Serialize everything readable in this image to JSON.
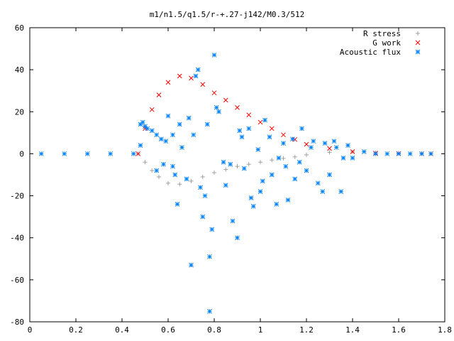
{
  "chart_data": {
    "type": "scatter",
    "title": "m1/n1.5/q1.5/r-+.27-j142/M0.3/512",
    "xlabel": "",
    "ylabel": "",
    "xlim": [
      0,
      1.8
    ],
    "ylim": [
      -80,
      60
    ],
    "x_ticks": [
      0,
      0.2,
      0.4,
      0.6,
      0.8,
      1,
      1.2,
      1.4,
      1.6,
      1.8
    ],
    "x_tick_labels": [
      "0",
      "0.2",
      "0.4",
      "0.6",
      "0.8",
      "1",
      "1.2",
      "1.4",
      "1.6",
      "1.8"
    ],
    "y_ticks": [
      -80,
      -60,
      -40,
      -20,
      0,
      20,
      40,
      60
    ],
    "y_tick_labels": [
      "-80",
      "-60",
      "-40",
      "-20",
      "0",
      "20",
      "40",
      "60"
    ],
    "grid": false,
    "legend_position": "top-right",
    "series": [
      {
        "name": "R stress",
        "marker": "plus",
        "color": "#a0a0a0",
        "x": [
          0.47,
          0.5,
          0.53,
          0.56,
          0.6,
          0.65,
          0.7,
          0.75,
          0.8,
          0.85,
          0.9,
          0.95,
          1.0,
          1.05,
          1.1,
          1.15,
          1.2,
          1.3,
          1.4,
          1.5,
          1.6,
          1.7,
          1.74
        ],
        "y": [
          0,
          -4,
          -8,
          -11,
          -14,
          -14.5,
          -13,
          -11,
          -9,
          -7.5,
          -6,
          -5,
          -4,
          -3,
          -2.2,
          -1.5,
          -0.5,
          0.7,
          0.9,
          0.5,
          0.3,
          0.1,
          0
        ]
      },
      {
        "name": "G work",
        "marker": "cross",
        "color": "#ff0000",
        "x": [
          0.47,
          0.5,
          0.53,
          0.56,
          0.6,
          0.65,
          0.7,
          0.75,
          0.8,
          0.85,
          0.9,
          0.95,
          1.0,
          1.05,
          1.1,
          1.15,
          1.2,
          1.3,
          1.4,
          1.5,
          1.6,
          1.7,
          1.74
        ],
        "y": [
          0,
          12,
          21,
          28,
          34,
          37,
          36,
          33,
          29,
          25.5,
          22,
          18.5,
          15,
          12,
          9,
          6.8,
          4.5,
          2.5,
          1,
          0.3,
          0.1,
          0,
          0
        ]
      },
      {
        "name": "Acoustic flux",
        "marker": "star",
        "color": "#0080ff",
        "x": [
          0.05,
          0.15,
          0.25,
          0.35,
          0.45,
          0.48,
          0.49,
          0.5,
          0.51,
          0.53,
          0.55,
          0.57,
          0.59,
          0.48,
          0.55,
          0.58,
          0.6,
          0.62,
          0.63,
          0.65,
          0.69,
          0.7,
          0.72,
          0.73,
          0.75,
          0.76,
          0.77,
          0.78,
          0.78,
          0.8,
          0.82,
          0.85,
          0.87,
          0.9,
          0.92,
          0.95,
          0.97,
          1.0,
          1.02,
          1.05,
          1.08,
          1.1,
          1.12,
          1.15,
          1.18,
          1.2,
          1.23,
          1.25,
          1.28,
          1.3,
          1.33,
          1.35,
          1.38,
          1.4,
          1.45,
          1.5,
          1.55,
          1.6,
          1.65,
          1.7,
          1.74,
          0.62,
          0.64,
          0.66,
          0.68,
          0.71,
          0.74,
          0.79,
          0.81,
          0.84,
          0.88,
          0.91,
          0.93,
          0.96,
          0.99,
          1.01,
          1.04,
          1.07,
          1.11,
          1.14,
          1.17,
          1.22,
          1.27,
          1.32,
          1.36
        ],
        "y": [
          0,
          0,
          0,
          0,
          0,
          14,
          15,
          13,
          12,
          11,
          9,
          7,
          6,
          4,
          -8,
          -5,
          18,
          9,
          -10,
          14,
          17,
          -53,
          37,
          40,
          -30,
          -20,
          14,
          -49,
          -75,
          47,
          20,
          -15,
          -5,
          -40,
          8,
          12,
          -25,
          -18,
          16,
          -10,
          -2,
          5,
          -22,
          -12,
          12,
          -8,
          6,
          -14,
          5,
          -10,
          3,
          -18,
          4,
          -2,
          1,
          0,
          0,
          0,
          0,
          0,
          0,
          -6,
          -24,
          3,
          -12,
          9,
          -16,
          -36,
          22,
          -4,
          -32,
          11,
          -7,
          -21,
          2,
          -13,
          8,
          -24,
          -6,
          7,
          -4,
          3,
          -18,
          6,
          -2
        ]
      }
    ]
  }
}
